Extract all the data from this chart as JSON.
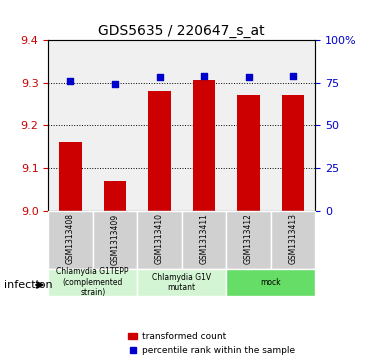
{
  "title": "GDS5635 / 220647_s_at",
  "samples": [
    "GSM1313408",
    "GSM1313409",
    "GSM1313410",
    "GSM1313411",
    "GSM1313412",
    "GSM1313413"
  ],
  "bar_values": [
    9.16,
    9.07,
    9.28,
    9.305,
    9.27,
    9.27
  ],
  "percentile_values": [
    76,
    74,
    78,
    79,
    78,
    79
  ],
  "ylim_left": [
    9.0,
    9.4
  ],
  "ylim_right": [
    0,
    100
  ],
  "yticks_left": [
    9.0,
    9.1,
    9.2,
    9.3,
    9.4
  ],
  "yticks_right": [
    0,
    25,
    50,
    75,
    100
  ],
  "ytick_labels_right": [
    "0",
    "25",
    "50",
    "75",
    "100%"
  ],
  "bar_color": "#cc0000",
  "dot_color": "#0000cc",
  "grid_color": "#000000",
  "bg_color": "#ffffff",
  "groups": [
    {
      "label": "Chlamydia G1TEPP\n(complemented\nstrain)",
      "indices": [
        0,
        1
      ],
      "color": "#ccffcc"
    },
    {
      "label": "Chlamydia G1V\nmutant",
      "indices": [
        2,
        3
      ],
      "color": "#ccffcc"
    },
    {
      "label": "mock",
      "indices": [
        4,
        5
      ],
      "color": "#66dd66"
    }
  ],
  "infection_label": "infection",
  "legend_bar_label": "transformed count",
  "legend_dot_label": "percentile rank within the sample",
  "xlabel_color": "#cc0000",
  "ylabel_right_color": "#0000cc"
}
